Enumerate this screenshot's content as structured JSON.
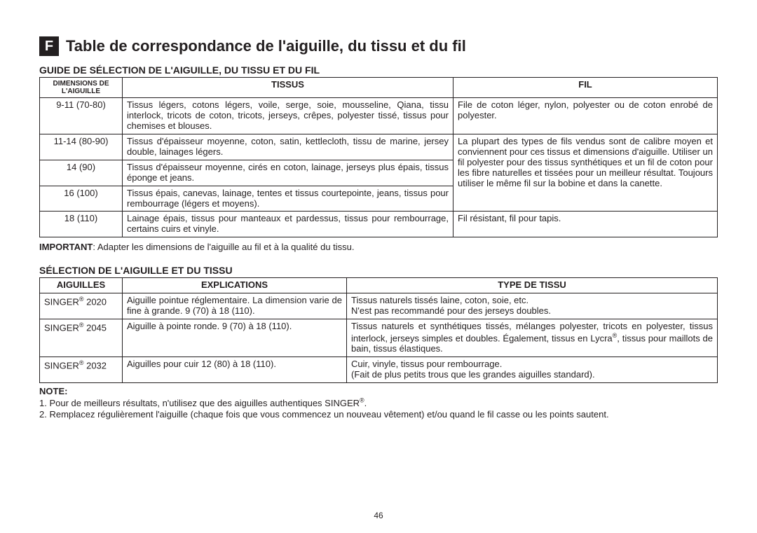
{
  "header": {
    "badge_letter": "F",
    "title": "Table de correspondance de l'aiguille, du tissu et du fil"
  },
  "section1": {
    "heading": "GUIDE DE SÉLECTION DE L'AIGUILLE, DU TISSU ET DU FIL",
    "col_headers": {
      "dim": "DIMENSIONS DE L'AIGUILLE",
      "tissu": "TISSUS",
      "fil": "FIL"
    },
    "rows": {
      "r0": {
        "dim": "9-11 (70-80)",
        "tissu": "Tissus légers, cotons légers, voile, serge, soie, mousseline, Qiana, tissu interlock, tricots de coton, tricots, jerseys, crêpes, polyester tissé, tissus pour chemises et blouses.",
        "fil": "File de coton léger, nylon, polyester ou de coton enrobé de polyester."
      },
      "r1": {
        "dim": "11-14 (80-90)",
        "tissu": "Tissus d'épaisseur moyenne, coton, satin, kettlecloth, tissu de marine, jersey double, lainages légers."
      },
      "r2": {
        "dim": "14 (90)",
        "tissu": "Tissus d'épaisseur moyenne, cirés en coton, lainage, jerseys plus épais, tissus éponge et jeans."
      },
      "r3": {
        "dim": "16 (100)",
        "tissu": "Tissus épais, canevas, lainage, tentes et tissus courtepointe, jeans, tissus pour rembourrage (légers et moyens)."
      },
      "merged_fil": "La plupart des types de fils vendus sont de calibre moyen et conviennent pour ces tissus et dimensions d'aiguille. Utiliser un fil polyester pour des tissus synthétiques et un fil de coton pour les fibre naturelles et tissées pour un meilleur résultat. Toujours utiliser le même fil sur la bobine et dans la canette.",
      "r4": {
        "dim": "18 (110)",
        "tissu": "Lainage épais, tissus pour manteaux et pardessus, tissus pour rembourrage, certains cuirs et vinyle.",
        "fil": "Fil résistant, fil pour tapis."
      }
    },
    "important_label": "IMPORTANT",
    "important_text": ": Adapter les dimensions de l'aiguille au fil et à la qualité du tissu."
  },
  "section2": {
    "heading": "SÉLECTION DE L'AIGUILLE ET DU TISSU",
    "col_headers": {
      "aig": "AIGUILLES",
      "exp": "EXPLICATIONS",
      "type": "TYPE DE TISSU"
    },
    "rows": {
      "r0": {
        "aig_brand": "SINGER",
        "aig_num": " 2020",
        "exp": "Aiguille pointue réglementaire. La dimension varie de fine à grande. 9 (70) à 18 (110).",
        "type_l1": "Tissus naturels tissés laine, coton, soie, etc.",
        "type_l2": "N'est pas recommandé pour des jerseys doubles."
      },
      "r1": {
        "aig_brand": "SINGER",
        "aig_num": " 2045",
        "exp": "Aiguille à pointe ronde. 9 (70) à 18 (110).",
        "type_pre": "Tissus naturels et synthétiques tissés, mélanges polyester, tricots en polyester, tissus interlock, jerseys simples et doubles. Également, tissus en Lycra",
        "type_post": ", tissus pour maillots de bain, tissus élastiques."
      },
      "r2": {
        "aig_brand": "SINGER",
        "aig_num": " 2032",
        "exp": "Aiguilles pour cuir 12 (80) à 18 (110).",
        "type_l1": "Cuir, vinyle, tissus pour rembourrage.",
        "type_l2": "(Fait de plus petits trous que les grandes aiguilles standard)."
      }
    }
  },
  "notes": {
    "label": "NOTE:",
    "n1_pre": "1. Pour de meilleurs résultats, n'utilisez que des aiguilles authentiques SINGER",
    "n1_post": ".",
    "n2": "2. Remplacez régulièrement l'aiguille (chaque fois que vous commencez un nouveau vêtement) et/ou quand le fil casse ou les points sautent."
  },
  "registered_symbol": "®",
  "page_number": "46"
}
